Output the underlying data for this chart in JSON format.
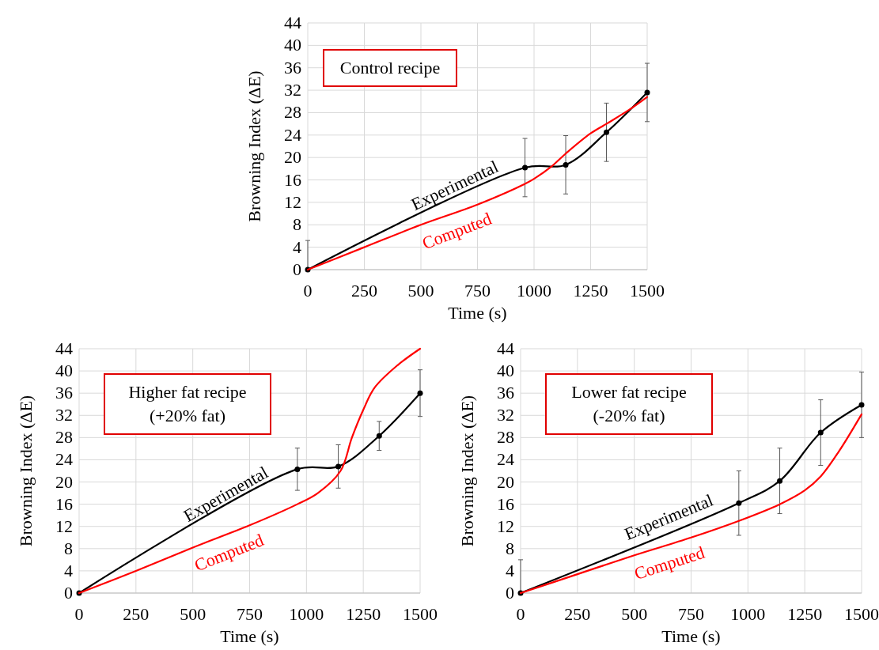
{
  "chart_data": [
    {
      "type": "line",
      "xlabel": "Time (s)",
      "ylabel": "Browning Index (ΔE)",
      "annotations": [
        "Control recipe"
      ],
      "xlim": [
        0,
        1500
      ],
      "xticks": [
        0,
        250,
        500,
        750,
        1000,
        1250,
        1500
      ],
      "ylim": [
        0,
        44
      ],
      "yticks": [
        0,
        4,
        8,
        12,
        16,
        20,
        24,
        28,
        32,
        36,
        40,
        44
      ],
      "grid": true,
      "series": [
        {
          "name": "Experimental",
          "color": "#000000",
          "marker": "circle",
          "x": [
            0,
            960,
            1140,
            1320,
            1500
          ],
          "values": [
            0,
            18.2,
            18.7,
            24.5,
            31.6
          ],
          "errors": [
            [
              0,
              5.2
            ],
            5.2,
            5.2,
            5.2,
            5.2
          ]
        },
        {
          "name": "Computed",
          "color": "#ff0000",
          "marker": "none",
          "x": [
            0,
            250,
            500,
            750,
            960,
            1000,
            1080,
            1140,
            1250,
            1320,
            1420,
            1500
          ],
          "values": [
            0,
            4,
            8,
            11.6,
            15.3,
            16.2,
            18.5,
            20.7,
            24.3,
            26,
            28.5,
            30.8
          ]
        }
      ]
    },
    {
      "type": "line",
      "xlabel": "Time (s)",
      "ylabel": "Browning Index (ΔE)",
      "annotations": [
        "Higher fat recipe\n(+20% fat)"
      ],
      "xlim": [
        0,
        1500
      ],
      "xticks": [
        0,
        250,
        500,
        750,
        1000,
        1250,
        1500
      ],
      "ylim": [
        0,
        44
      ],
      "yticks": [
        0,
        4,
        8,
        12,
        16,
        20,
        24,
        28,
        32,
        36,
        40,
        44
      ],
      "grid": true,
      "series": [
        {
          "name": "Experimental",
          "color": "#000000",
          "marker": "circle",
          "x": [
            0,
            960,
            1140,
            1320,
            1500
          ],
          "values": [
            0,
            22.3,
            22.8,
            28.3,
            36
          ],
          "errors": [
            null,
            3.8,
            3.9,
            2.6,
            4.2
          ]
        },
        {
          "name": "Computed",
          "color": "#ff0000",
          "marker": "none",
          "x": [
            0,
            250,
            500,
            750,
            960,
            1050,
            1150,
            1200,
            1250,
            1300,
            1400,
            1500
          ],
          "values": [
            0,
            4,
            8.2,
            12.2,
            16,
            18,
            22,
            28,
            33,
            37,
            41,
            44
          ]
        }
      ]
    },
    {
      "type": "line",
      "xlabel": "Time (s)",
      "ylabel": "Browning Index (ΔE)",
      "annotations": [
        "Lower fat recipe\n(-20% fat)"
      ],
      "xlim": [
        0,
        1500
      ],
      "xticks": [
        0,
        250,
        500,
        750,
        1000,
        1250,
        1500
      ],
      "ylim": [
        0,
        44
      ],
      "yticks": [
        0,
        4,
        8,
        12,
        16,
        20,
        24,
        28,
        32,
        36,
        40,
        44
      ],
      "grid": true,
      "series": [
        {
          "name": "Experimental",
          "color": "#000000",
          "marker": "circle",
          "x": [
            0,
            960,
            1140,
            1320,
            1500
          ],
          "values": [
            0,
            16.2,
            20.2,
            28.9,
            33.9
          ],
          "errors": [
            [
              0,
              6
            ],
            5.8,
            5.9,
            5.9,
            5.9
          ]
        },
        {
          "name": "Computed",
          "color": "#ff0000",
          "marker": "none",
          "x": [
            0,
            250,
            500,
            750,
            960,
            1140,
            1250,
            1320,
            1400,
            1500
          ],
          "values": [
            0,
            3.4,
            6.8,
            10,
            13,
            16,
            18.5,
            21,
            25.5,
            32.2
          ]
        }
      ]
    }
  ]
}
